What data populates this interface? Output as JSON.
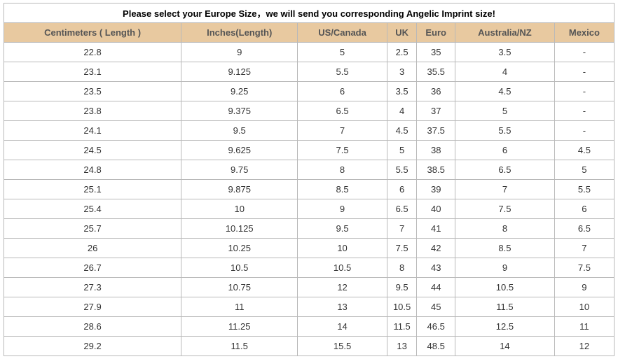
{
  "title": "Please select your Europe Size，we will send you corresponding Angelic Imprint size!",
  "colors": {
    "header_background": "#e8c9a0",
    "border": "#b9b9b9"
  },
  "columns": [
    "Centimeters ( Length )",
    "Inches(Length)",
    "US/Canada",
    "UK",
    "Euro",
    "Australia/NZ",
    "Mexico"
  ],
  "rows": [
    [
      "22.8",
      "9",
      "5",
      "2.5",
      "35",
      "3.5",
      "-"
    ],
    [
      "23.1",
      "9.125",
      "5.5",
      "3",
      "35.5",
      "4",
      "-"
    ],
    [
      "23.5",
      "9.25",
      "6",
      "3.5",
      "36",
      "4.5",
      "-"
    ],
    [
      "23.8",
      "9.375",
      "6.5",
      "4",
      "37",
      "5",
      "-"
    ],
    [
      "24.1",
      "9.5",
      "7",
      "4.5",
      "37.5",
      "5.5",
      "-"
    ],
    [
      "24.5",
      "9.625",
      "7.5",
      "5",
      "38",
      "6",
      "4.5"
    ],
    [
      "24.8",
      "9.75",
      "8",
      "5.5",
      "38.5",
      "6.5",
      "5"
    ],
    [
      "25.1",
      "9.875",
      "8.5",
      "6",
      "39",
      "7",
      "5.5"
    ],
    [
      "25.4",
      "10",
      "9",
      "6.5",
      "40",
      "7.5",
      "6"
    ],
    [
      "25.7",
      "10.125",
      "9.5",
      "7",
      "41",
      "8",
      "6.5"
    ],
    [
      "26",
      "10.25",
      "10",
      "7.5",
      "42",
      "8.5",
      "7"
    ],
    [
      "26.7",
      "10.5",
      "10.5",
      "8",
      "43",
      "9",
      "7.5"
    ],
    [
      "27.3",
      "10.75",
      "12",
      "9.5",
      "44",
      "10.5",
      "9"
    ],
    [
      "27.9",
      "11",
      "13",
      "10.5",
      "45",
      "11.5",
      "10"
    ],
    [
      "28.6",
      "11.25",
      "14",
      "11.5",
      "46.5",
      "12.5",
      "11"
    ],
    [
      "29.2",
      "11.5",
      "15.5",
      "13",
      "48.5",
      "14",
      "12"
    ]
  ]
}
